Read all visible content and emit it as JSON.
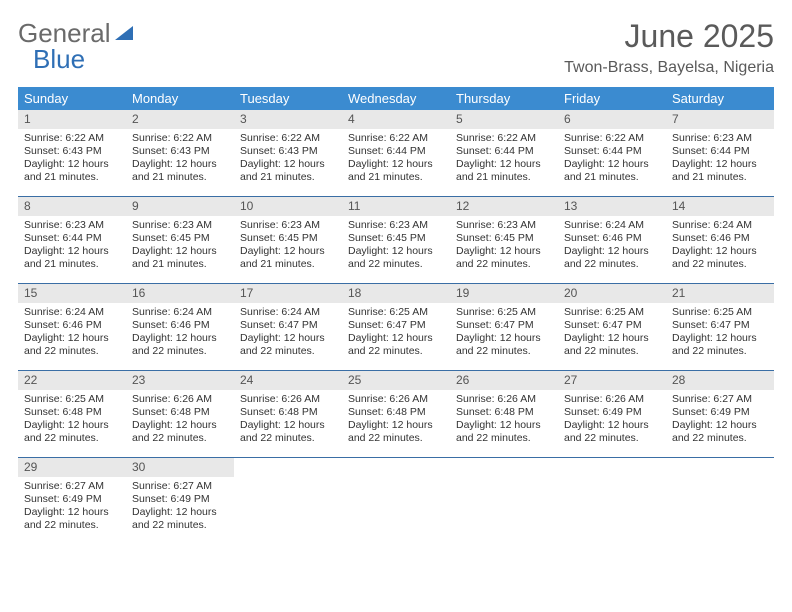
{
  "logo": {
    "part1": "General",
    "part2": "Blue"
  },
  "title": "June 2025",
  "location": "Twon-Brass, Bayelsa, Nigeria",
  "colors": {
    "header_bg": "#3b8bd0",
    "header_text": "#ffffff",
    "week_divider": "#3a6ea5",
    "daynum_bg": "#e8e8e8",
    "text": "#333333",
    "logo_gray": "#6a6a6a",
    "logo_blue": "#2f6fb5",
    "title_color": "#5a5a5a"
  },
  "day_headers": [
    "Sunday",
    "Monday",
    "Tuesday",
    "Wednesday",
    "Thursday",
    "Friday",
    "Saturday"
  ],
  "weeks": [
    [
      {
        "n": "1",
        "sr": "Sunrise: 6:22 AM",
        "ss": "Sunset: 6:43 PM",
        "d1": "Daylight: 12 hours",
        "d2": "and 21 minutes."
      },
      {
        "n": "2",
        "sr": "Sunrise: 6:22 AM",
        "ss": "Sunset: 6:43 PM",
        "d1": "Daylight: 12 hours",
        "d2": "and 21 minutes."
      },
      {
        "n": "3",
        "sr": "Sunrise: 6:22 AM",
        "ss": "Sunset: 6:43 PM",
        "d1": "Daylight: 12 hours",
        "d2": "and 21 minutes."
      },
      {
        "n": "4",
        "sr": "Sunrise: 6:22 AM",
        "ss": "Sunset: 6:44 PM",
        "d1": "Daylight: 12 hours",
        "d2": "and 21 minutes."
      },
      {
        "n": "5",
        "sr": "Sunrise: 6:22 AM",
        "ss": "Sunset: 6:44 PM",
        "d1": "Daylight: 12 hours",
        "d2": "and 21 minutes."
      },
      {
        "n": "6",
        "sr": "Sunrise: 6:22 AM",
        "ss": "Sunset: 6:44 PM",
        "d1": "Daylight: 12 hours",
        "d2": "and 21 minutes."
      },
      {
        "n": "7",
        "sr": "Sunrise: 6:23 AM",
        "ss": "Sunset: 6:44 PM",
        "d1": "Daylight: 12 hours",
        "d2": "and 21 minutes."
      }
    ],
    [
      {
        "n": "8",
        "sr": "Sunrise: 6:23 AM",
        "ss": "Sunset: 6:44 PM",
        "d1": "Daylight: 12 hours",
        "d2": "and 21 minutes."
      },
      {
        "n": "9",
        "sr": "Sunrise: 6:23 AM",
        "ss": "Sunset: 6:45 PM",
        "d1": "Daylight: 12 hours",
        "d2": "and 21 minutes."
      },
      {
        "n": "10",
        "sr": "Sunrise: 6:23 AM",
        "ss": "Sunset: 6:45 PM",
        "d1": "Daylight: 12 hours",
        "d2": "and 21 minutes."
      },
      {
        "n": "11",
        "sr": "Sunrise: 6:23 AM",
        "ss": "Sunset: 6:45 PM",
        "d1": "Daylight: 12 hours",
        "d2": "and 22 minutes."
      },
      {
        "n": "12",
        "sr": "Sunrise: 6:23 AM",
        "ss": "Sunset: 6:45 PM",
        "d1": "Daylight: 12 hours",
        "d2": "and 22 minutes."
      },
      {
        "n": "13",
        "sr": "Sunrise: 6:24 AM",
        "ss": "Sunset: 6:46 PM",
        "d1": "Daylight: 12 hours",
        "d2": "and 22 minutes."
      },
      {
        "n": "14",
        "sr": "Sunrise: 6:24 AM",
        "ss": "Sunset: 6:46 PM",
        "d1": "Daylight: 12 hours",
        "d2": "and 22 minutes."
      }
    ],
    [
      {
        "n": "15",
        "sr": "Sunrise: 6:24 AM",
        "ss": "Sunset: 6:46 PM",
        "d1": "Daylight: 12 hours",
        "d2": "and 22 minutes."
      },
      {
        "n": "16",
        "sr": "Sunrise: 6:24 AM",
        "ss": "Sunset: 6:46 PM",
        "d1": "Daylight: 12 hours",
        "d2": "and 22 minutes."
      },
      {
        "n": "17",
        "sr": "Sunrise: 6:24 AM",
        "ss": "Sunset: 6:47 PM",
        "d1": "Daylight: 12 hours",
        "d2": "and 22 minutes."
      },
      {
        "n": "18",
        "sr": "Sunrise: 6:25 AM",
        "ss": "Sunset: 6:47 PM",
        "d1": "Daylight: 12 hours",
        "d2": "and 22 minutes."
      },
      {
        "n": "19",
        "sr": "Sunrise: 6:25 AM",
        "ss": "Sunset: 6:47 PM",
        "d1": "Daylight: 12 hours",
        "d2": "and 22 minutes."
      },
      {
        "n": "20",
        "sr": "Sunrise: 6:25 AM",
        "ss": "Sunset: 6:47 PM",
        "d1": "Daylight: 12 hours",
        "d2": "and 22 minutes."
      },
      {
        "n": "21",
        "sr": "Sunrise: 6:25 AM",
        "ss": "Sunset: 6:47 PM",
        "d1": "Daylight: 12 hours",
        "d2": "and 22 minutes."
      }
    ],
    [
      {
        "n": "22",
        "sr": "Sunrise: 6:25 AM",
        "ss": "Sunset: 6:48 PM",
        "d1": "Daylight: 12 hours",
        "d2": "and 22 minutes."
      },
      {
        "n": "23",
        "sr": "Sunrise: 6:26 AM",
        "ss": "Sunset: 6:48 PM",
        "d1": "Daylight: 12 hours",
        "d2": "and 22 minutes."
      },
      {
        "n": "24",
        "sr": "Sunrise: 6:26 AM",
        "ss": "Sunset: 6:48 PM",
        "d1": "Daylight: 12 hours",
        "d2": "and 22 minutes."
      },
      {
        "n": "25",
        "sr": "Sunrise: 6:26 AM",
        "ss": "Sunset: 6:48 PM",
        "d1": "Daylight: 12 hours",
        "d2": "and 22 minutes."
      },
      {
        "n": "26",
        "sr": "Sunrise: 6:26 AM",
        "ss": "Sunset: 6:48 PM",
        "d1": "Daylight: 12 hours",
        "d2": "and 22 minutes."
      },
      {
        "n": "27",
        "sr": "Sunrise: 6:26 AM",
        "ss": "Sunset: 6:49 PM",
        "d1": "Daylight: 12 hours",
        "d2": "and 22 minutes."
      },
      {
        "n": "28",
        "sr": "Sunrise: 6:27 AM",
        "ss": "Sunset: 6:49 PM",
        "d1": "Daylight: 12 hours",
        "d2": "and 22 minutes."
      }
    ],
    [
      {
        "n": "29",
        "sr": "Sunrise: 6:27 AM",
        "ss": "Sunset: 6:49 PM",
        "d1": "Daylight: 12 hours",
        "d2": "and 22 minutes."
      },
      {
        "n": "30",
        "sr": "Sunrise: 6:27 AM",
        "ss": "Sunset: 6:49 PM",
        "d1": "Daylight: 12 hours",
        "d2": "and 22 minutes."
      },
      null,
      null,
      null,
      null,
      null
    ]
  ]
}
